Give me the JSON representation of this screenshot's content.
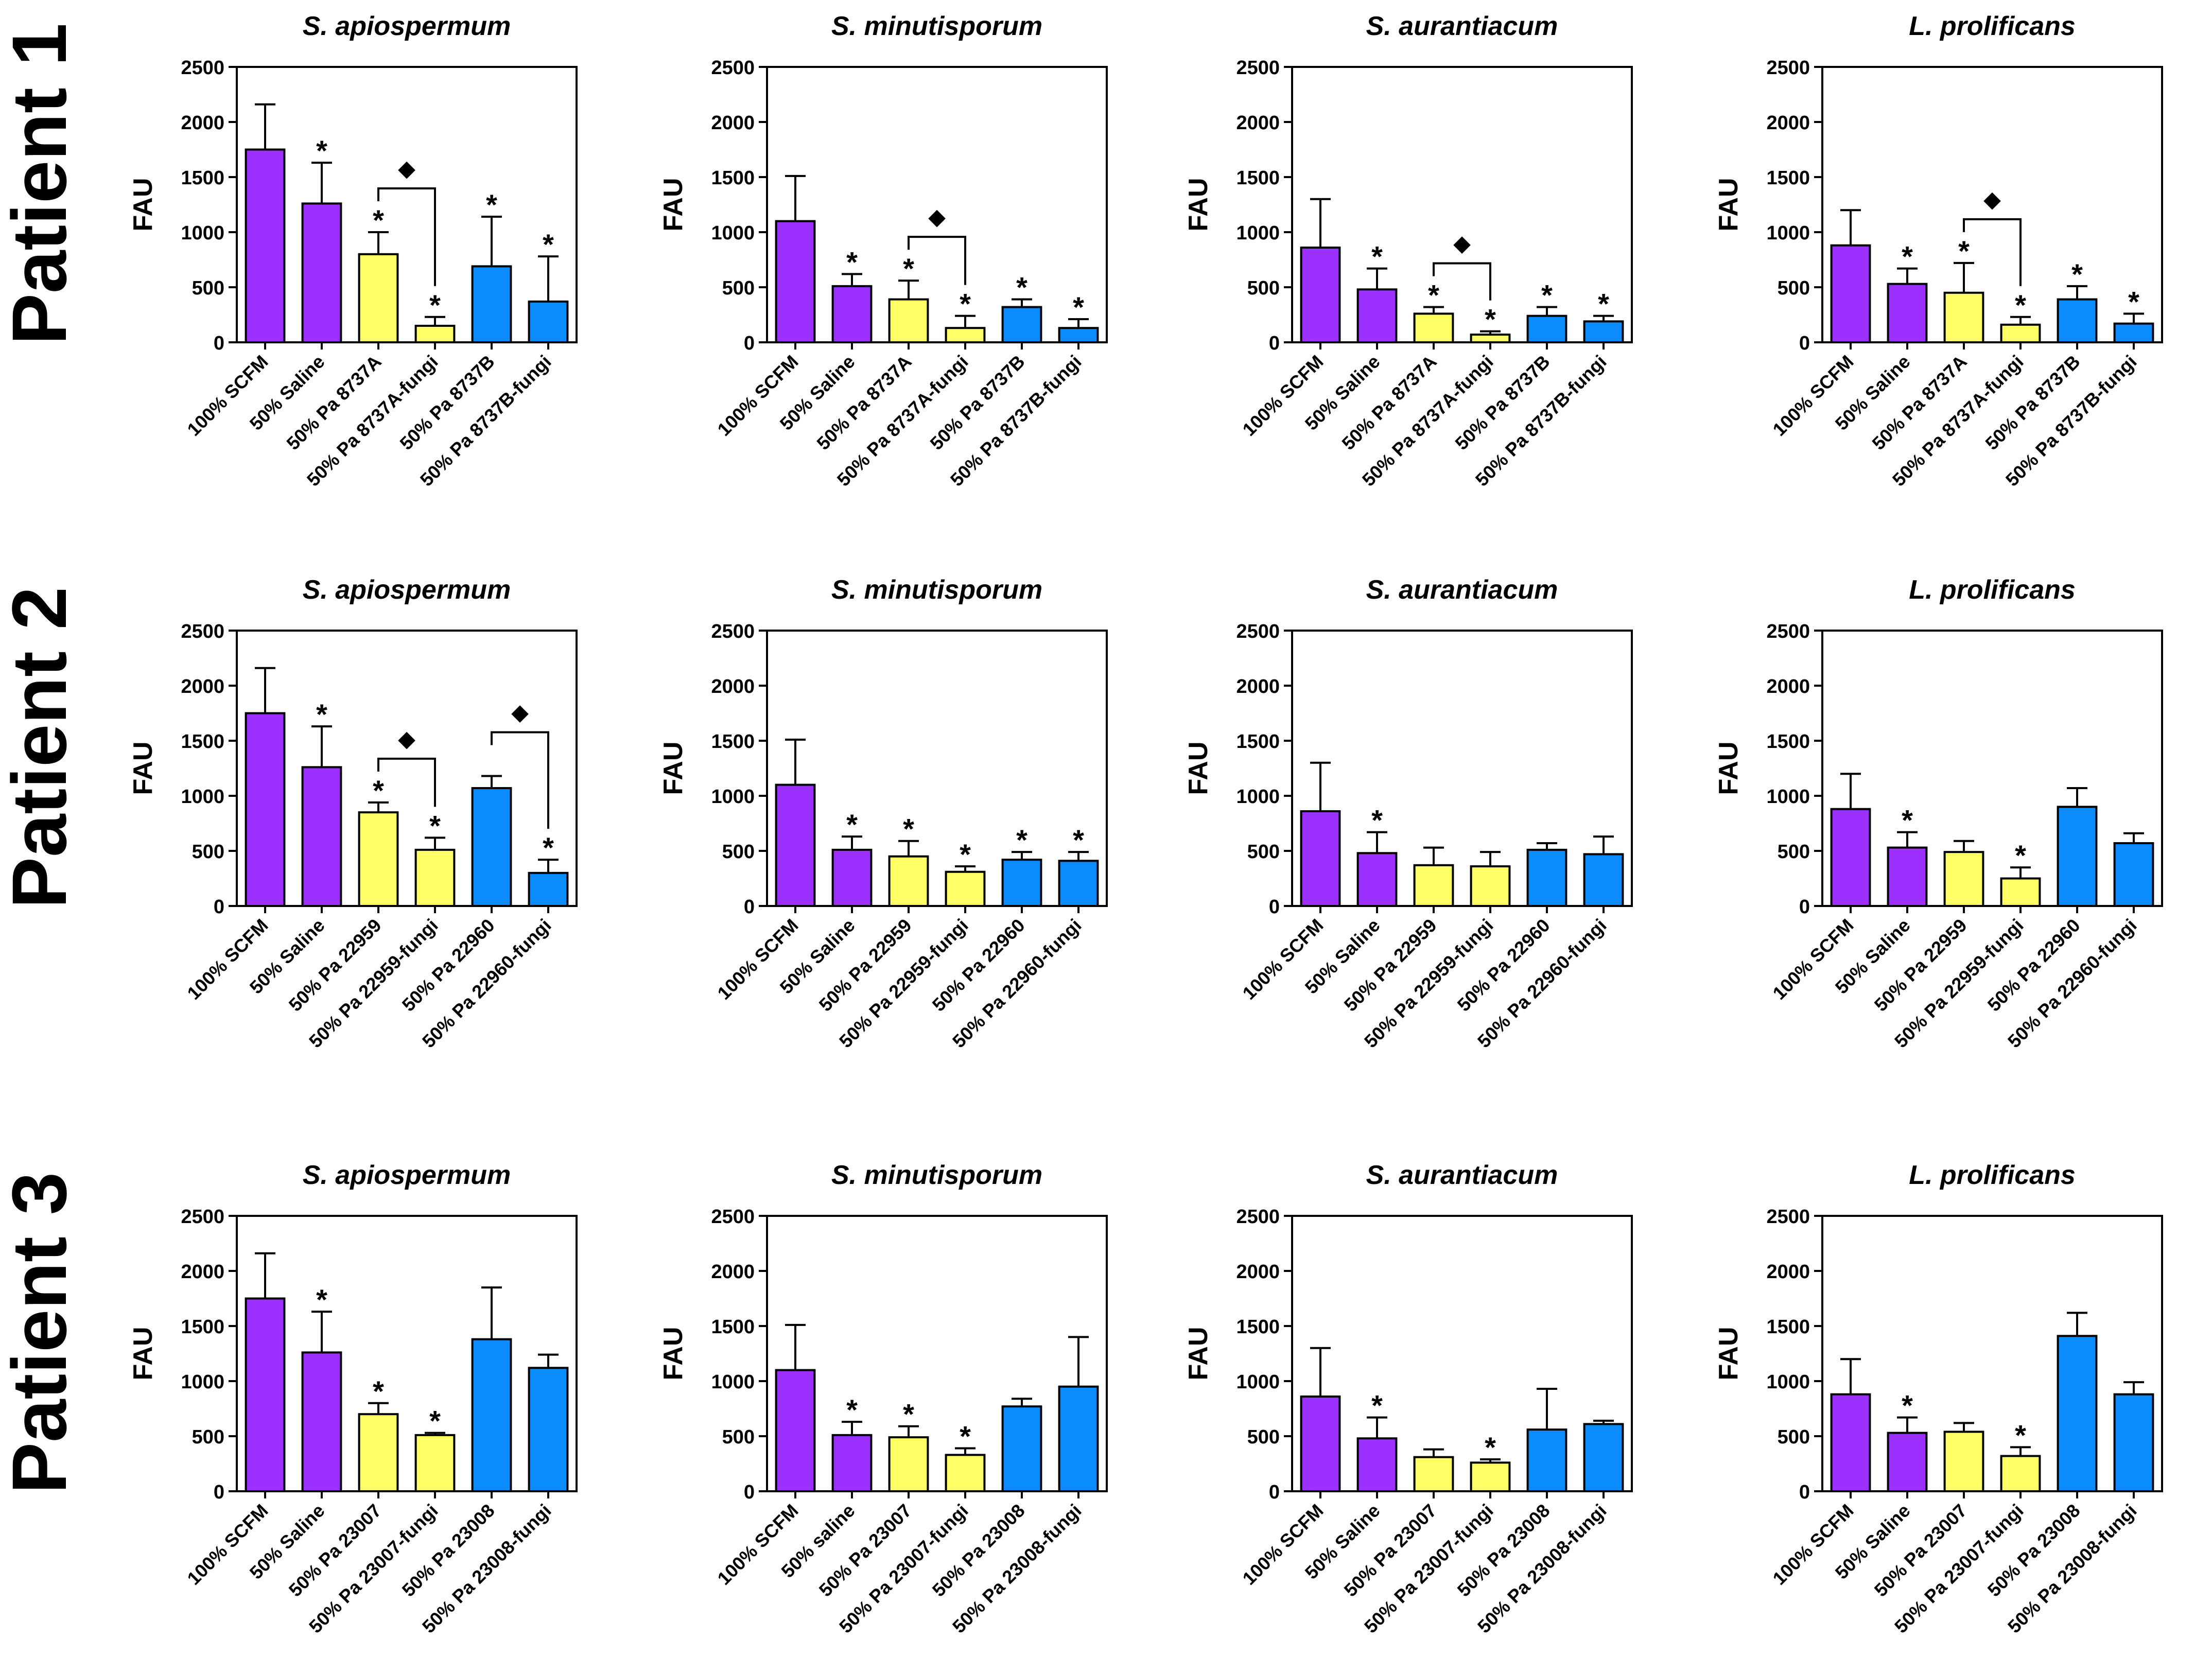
{
  "figure": {
    "patient_labels": [
      "Patient 1",
      "Patient 2",
      "Patient 3"
    ],
    "colors": {
      "scfm": "#9b30ff",
      "saline": "#9b30ff",
      "strainA": "#ffff66",
      "strainB": "#0a8cff",
      "axis": "#000000"
    },
    "significance_marker": "*",
    "pair_marker": "◆"
  },
  "chart_data": [
    {
      "type": "bar",
      "patient": "Patient 1",
      "title": "S. apiospermum",
      "ylabel": "FAU",
      "ylim": [
        0,
        2500
      ],
      "yticks": [
        0,
        500,
        1000,
        1500,
        2000,
        2500
      ],
      "categories": [
        "100% SCFM",
        "50% Saline",
        "50% Pa 8737A",
        "50% Pa 8737A-fungi",
        "50% Pa 8737B",
        "50% Pa 8737B-fungi"
      ],
      "values": [
        1750,
        1260,
        800,
        150,
        690,
        370
      ],
      "errors": [
        410,
        370,
        200,
        80,
        450,
        410
      ],
      "sig": [
        false,
        true,
        true,
        true,
        true,
        true
      ],
      "brackets": [
        [
          2,
          3
        ]
      ]
    },
    {
      "type": "bar",
      "patient": "Patient 1",
      "title": "S. minutisporum",
      "ylabel": "FAU",
      "ylim": [
        0,
        2500
      ],
      "yticks": [
        0,
        500,
        1000,
        1500,
        2000,
        2500
      ],
      "categories": [
        "100% SCFM",
        "50% Saline",
        "50% Pa 8737A",
        "50% Pa 8737A-fungi",
        "50% Pa 8737B",
        "50% Pa 8737B-fungi"
      ],
      "values": [
        1100,
        510,
        390,
        130,
        320,
        130
      ],
      "errors": [
        410,
        110,
        170,
        110,
        70,
        80
      ],
      "sig": [
        false,
        true,
        true,
        true,
        true,
        true
      ],
      "brackets": [
        [
          2,
          3
        ]
      ]
    },
    {
      "type": "bar",
      "patient": "Patient 1",
      "title": "S. aurantiacum",
      "ylabel": "FAU",
      "ylim": [
        0,
        2500
      ],
      "yticks": [
        0,
        500,
        1000,
        1500,
        2000,
        2500
      ],
      "categories": [
        "100% SCFM",
        "50% Saline",
        "50% Pa 8737A",
        "50% Pa 8737A-fungi",
        "50% Pa 8737B",
        "50% Pa 8737B-fungi"
      ],
      "values": [
        860,
        480,
        260,
        70,
        240,
        190
      ],
      "errors": [
        440,
        190,
        60,
        30,
        80,
        50
      ],
      "sig": [
        false,
        true,
        true,
        true,
        true,
        true
      ],
      "brackets": [
        [
          2,
          3
        ]
      ]
    },
    {
      "type": "bar",
      "patient": "Patient 1",
      "title": "L. prolificans",
      "ylabel": "FAU",
      "ylim": [
        0,
        2500
      ],
      "yticks": [
        0,
        500,
        1000,
        1500,
        2000,
        2500
      ],
      "categories": [
        "100% SCFM",
        "50% Saline",
        "50% Pa 8737A",
        "50% Pa 8737A-fungi",
        "50% Pa 8737B",
        "50% Pa 8737B-fungi"
      ],
      "values": [
        880,
        530,
        450,
        160,
        390,
        170
      ],
      "errors": [
        320,
        140,
        270,
        70,
        120,
        90
      ],
      "sig": [
        false,
        true,
        true,
        true,
        true,
        true
      ],
      "brackets": [
        [
          2,
          3
        ]
      ]
    },
    {
      "type": "bar",
      "patient": "Patient 2",
      "title": "S. apiospermum",
      "ylabel": "FAU",
      "ylim": [
        0,
        2500
      ],
      "yticks": [
        0,
        500,
        1000,
        1500,
        2000,
        2500
      ],
      "categories": [
        "100% SCFM",
        "50% Saline",
        "50% Pa 22959",
        "50% Pa 22959-fungi",
        "50% Pa 22960",
        "50% Pa 22960-fungi"
      ],
      "values": [
        1750,
        1260,
        850,
        510,
        1070,
        300
      ],
      "errors": [
        410,
        370,
        90,
        110,
        110,
        120
      ],
      "sig": [
        false,
        true,
        true,
        true,
        false,
        true
      ],
      "brackets": [
        [
          2,
          3
        ],
        [
          4,
          5
        ]
      ]
    },
    {
      "type": "bar",
      "patient": "Patient 2",
      "title": "S. minutisporum",
      "ylabel": "FAU",
      "ylim": [
        0,
        2500
      ],
      "yticks": [
        0,
        500,
        1000,
        1500,
        2000,
        2500
      ],
      "categories": [
        "100% SCFM",
        "50% Saline",
        "50% Pa 22959",
        "50% Pa 22959-fungi",
        "50% Pa 22960",
        "50% Pa 22960-fungi"
      ],
      "values": [
        1100,
        510,
        450,
        310,
        420,
        410
      ],
      "errors": [
        410,
        120,
        140,
        50,
        70,
        80
      ],
      "sig": [
        false,
        true,
        true,
        true,
        true,
        true
      ],
      "brackets": []
    },
    {
      "type": "bar",
      "patient": "Patient 2",
      "title": "S. aurantiacum",
      "ylabel": "FAU",
      "ylim": [
        0,
        2500
      ],
      "yticks": [
        0,
        500,
        1000,
        1500,
        2000,
        2500
      ],
      "categories": [
        "100% SCFM",
        "50% Saline",
        "50% Pa 22959",
        "50% Pa 22959-fungi",
        "50% Pa 22960",
        "50% Pa 22960-fungi"
      ],
      "values": [
        860,
        480,
        370,
        360,
        510,
        470
      ],
      "errors": [
        440,
        190,
        160,
        130,
        60,
        160
      ],
      "sig": [
        false,
        true,
        false,
        false,
        false,
        false
      ],
      "brackets": []
    },
    {
      "type": "bar",
      "patient": "Patient 2",
      "title": "L. prolificans",
      "ylabel": "FAU",
      "ylim": [
        0,
        2500
      ],
      "yticks": [
        0,
        500,
        1000,
        1500,
        2000,
        2500
      ],
      "categories": [
        "100% SCFM",
        "50% Saline",
        "50% Pa 22959",
        "50% Pa 22959-fungi",
        "50% Pa 22960",
        "50% Pa 22960-fungi"
      ],
      "values": [
        880,
        530,
        490,
        250,
        900,
        570
      ],
      "errors": [
        320,
        140,
        100,
        100,
        170,
        90
      ],
      "sig": [
        false,
        true,
        false,
        true,
        false,
        false
      ],
      "brackets": []
    },
    {
      "type": "bar",
      "patient": "Patient 3",
      "title": "S. apiospermum",
      "ylabel": "FAU",
      "ylim": [
        0,
        2500
      ],
      "yticks": [
        0,
        500,
        1000,
        1500,
        2000,
        2500
      ],
      "categories": [
        "100% SCFM",
        "50% Saline",
        "50% Pa 23007",
        "50% Pa 23007-fungi",
        "50% Pa 23008",
        "50% Pa 23008-fungi"
      ],
      "values": [
        1750,
        1260,
        700,
        510,
        1380,
        1120
      ],
      "errors": [
        410,
        370,
        100,
        20,
        470,
        120
      ],
      "sig": [
        false,
        true,
        true,
        true,
        false,
        false
      ],
      "brackets": []
    },
    {
      "type": "bar",
      "patient": "Patient 3",
      "title": "S. minutisporum",
      "ylabel": "FAU",
      "ylim": [
        0,
        2500
      ],
      "yticks": [
        0,
        500,
        1000,
        1500,
        2000,
        2500
      ],
      "categories": [
        "100% SCFM",
        "50% saline",
        "50% Pa 23007",
        "50% Pa 23007-fungi",
        "50% Pa 23008",
        "50% Pa 23008-fungi"
      ],
      "values": [
        1100,
        510,
        490,
        330,
        770,
        950
      ],
      "errors": [
        410,
        120,
        100,
        60,
        70,
        450
      ],
      "sig": [
        false,
        true,
        true,
        true,
        false,
        false
      ],
      "brackets": []
    },
    {
      "type": "bar",
      "patient": "Patient 3",
      "title": "S. aurantiacum",
      "ylabel": "FAU",
      "ylim": [
        0,
        2500
      ],
      "yticks": [
        0,
        500,
        1000,
        1500,
        2000,
        2500
      ],
      "categories": [
        "100% SCFM",
        "50% Saline",
        "50% Pa 23007",
        "50% Pa 23007-fungi",
        "50% Pa 23008",
        "50% Pa 23008-fungi"
      ],
      "values": [
        860,
        480,
        310,
        260,
        560,
        610
      ],
      "errors": [
        440,
        190,
        70,
        30,
        370,
        30
      ],
      "sig": [
        false,
        true,
        false,
        true,
        false,
        false
      ],
      "brackets": []
    },
    {
      "type": "bar",
      "patient": "Patient 3",
      "title": "L. prolificans",
      "ylabel": "FAU",
      "ylim": [
        0,
        2500
      ],
      "yticks": [
        0,
        500,
        1000,
        1500,
        2000,
        2500
      ],
      "categories": [
        "100% SCFM",
        "50% Saline",
        "50% Pa 23007",
        "50% Pa 23007-fungi",
        "50% Pa 23008",
        "50% Pa 23008-fungi"
      ],
      "values": [
        880,
        530,
        540,
        320,
        1410,
        880
      ],
      "errors": [
        320,
        140,
        80,
        80,
        210,
        110
      ],
      "sig": [
        false,
        true,
        false,
        true,
        false,
        false
      ],
      "brackets": []
    }
  ]
}
